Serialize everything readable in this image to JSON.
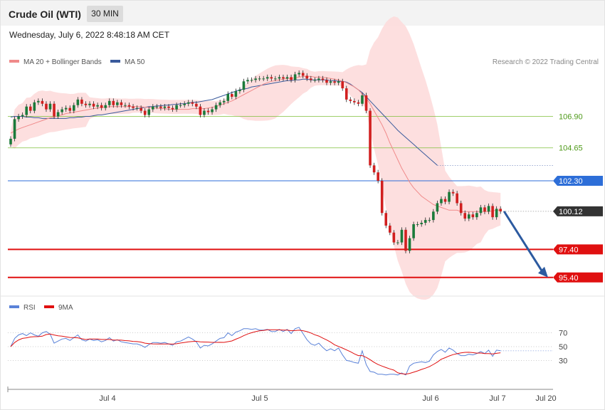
{
  "header": {
    "title": "Crude Oil (WTI)",
    "interval": "30 MIN",
    "timestamp": "Wednesday, July 6, 2022 8:48:18 AM CET"
  },
  "legend": {
    "ma20": "MA 20 + Bollinger Bands",
    "ma50": "MA 50",
    "copyright": "Research © 2022 Trading Central"
  },
  "rsi_legend": {
    "rsi": "RSI",
    "ma9": "9MA"
  },
  "colors": {
    "up_candle": "#1b7a3a",
    "down_candle": "#d11f1f",
    "ma20": "#f08a8a",
    "ma50": "#3a5a9c",
    "bands": "#fdd9d9",
    "resistance": "#7fbf3a",
    "pivot": "#2d6ed8",
    "support": "#e01010",
    "last": "#333333",
    "rsi": "#5a82d8",
    "rsi_ma": "#e01010",
    "arrow": "#2c5aa0"
  },
  "chart_data": [
    {
      "type": "candlestick",
      "title": "Crude Oil (WTI)",
      "timeframe": "30 MIN",
      "x_labels": [
        "Jul 4",
        "Jul 5",
        "Jul 6",
        "Jul 7",
        "Jul 20"
      ],
      "ylim": [
        94.6,
        110.4
      ],
      "levels": [
        {
          "value": 106.9,
          "label": "106.90",
          "kind": "resistance"
        },
        {
          "value": 104.65,
          "label": "104.65",
          "kind": "resistance"
        },
        {
          "value": 102.3,
          "label": "102.30",
          "kind": "pivot"
        },
        {
          "value": 100.12,
          "label": "100.12",
          "kind": "last"
        },
        {
          "value": 97.4,
          "label": "97.40",
          "kind": "support"
        },
        {
          "value": 95.4,
          "label": "95.40",
          "kind": "support"
        }
      ],
      "close": [
        105.3,
        106.7,
        106.9,
        107.0,
        107.6,
        107.3,
        107.9,
        108.0,
        107.8,
        107.4,
        107.8,
        106.9,
        107.2,
        107.4,
        107.5,
        107.3,
        107.7,
        108.1,
        107.8,
        107.7,
        107.8,
        107.6,
        107.7,
        107.5,
        107.7,
        108.0,
        107.7,
        107.9,
        107.7,
        107.7,
        107.6,
        107.5,
        107.5,
        107.3,
        107.0,
        107.4,
        107.6,
        107.6,
        107.5,
        107.6,
        107.5,
        107.4,
        107.7,
        107.7,
        107.8,
        107.9,
        107.8,
        107.6,
        107.0,
        107.3,
        107.2,
        107.4,
        107.7,
        107.9,
        108.0,
        108.5,
        108.3,
        108.7,
        108.8,
        109.4,
        109.5,
        109.5,
        109.6,
        109.6,
        109.6,
        109.7,
        109.6,
        109.6,
        109.7,
        109.6,
        109.7,
        109.5,
        109.9,
        110.0,
        109.8,
        109.6,
        109.5,
        109.5,
        109.6,
        109.5,
        109.3,
        109.4,
        109.3,
        109.4,
        108.9,
        108.1,
        108.0,
        107.9,
        107.8,
        108.4,
        107.3,
        103.4,
        102.9,
        102.3,
        100.0,
        99.1,
        98.6,
        97.9,
        97.9,
        98.8,
        97.3,
        98.2,
        99.2,
        99.2,
        99.3,
        99.5,
        99.5,
        100.1,
        100.7,
        101.0,
        100.8,
        101.5,
        101.4,
        100.7,
        100.0,
        99.6,
        99.9,
        99.7,
        100.0,
        100.4,
        100.1,
        100.5,
        99.7,
        100.3,
        100.12
      ],
      "ma20": [
        105.7,
        105.85,
        106.0,
        106.1,
        106.2,
        106.3,
        106.4,
        106.5,
        106.6,
        106.7,
        106.8,
        106.85,
        106.95,
        107.0,
        107.1,
        107.15,
        107.2,
        107.25,
        107.3,
        107.35,
        107.4,
        107.45,
        107.5,
        107.55,
        107.55,
        107.6,
        107.6,
        107.6,
        107.6,
        107.6,
        107.6,
        107.6,
        107.6,
        107.6,
        107.55,
        107.55,
        107.5,
        107.5,
        107.45,
        107.45,
        107.4,
        107.4,
        107.4,
        107.4,
        107.4,
        107.4,
        107.45,
        107.45,
        107.45,
        107.45,
        107.5,
        107.55,
        107.6,
        107.7,
        107.8,
        107.9,
        108.0,
        108.15,
        108.3,
        108.45,
        108.6,
        108.75,
        108.9,
        109.05,
        109.2,
        109.3,
        109.4,
        109.45,
        109.5,
        109.55,
        109.6,
        109.6,
        109.65,
        109.7,
        109.75,
        109.75,
        109.75,
        109.7,
        109.7,
        109.7,
        109.65,
        109.6,
        109.55,
        109.5,
        109.4,
        109.3,
        109.15,
        109.0,
        108.8,
        108.5,
        108.2,
        107.8,
        107.3,
        106.8,
        106.3,
        105.7,
        105.0,
        104.4,
        103.8,
        103.2,
        102.7,
        102.2,
        101.8,
        101.5,
        101.2,
        101.0,
        100.8,
        100.6,
        100.5,
        100.4,
        100.3,
        100.2,
        100.2,
        100.2,
        100.1,
        100.1,
        100.1,
        100.1,
        100.1,
        100.1,
        100.1,
        100.1,
        100.15,
        100.2,
        100.2
      ],
      "ma50": [
        106.85,
        106.9,
        106.9,
        106.9,
        106.85,
        106.85,
        106.8,
        106.8,
        106.75,
        106.75,
        106.75,
        106.75,
        106.75,
        106.75,
        106.75,
        106.8,
        106.8,
        106.85,
        106.85,
        106.9,
        106.9,
        106.95,
        107.0,
        107.0,
        107.05,
        107.1,
        107.15,
        107.2,
        107.25,
        107.3,
        107.35,
        107.4,
        107.45,
        107.5,
        107.55,
        107.6,
        107.6,
        107.65,
        107.65,
        107.7,
        107.7,
        107.75,
        107.75,
        107.8,
        107.8,
        107.85,
        107.9,
        107.9,
        107.95,
        108.0,
        108.05,
        108.1,
        108.2,
        108.3,
        108.4,
        108.5,
        108.6,
        108.7,
        108.8,
        108.85,
        108.9,
        109.0,
        109.05,
        109.1,
        109.15,
        109.2,
        109.25,
        109.3,
        109.35,
        109.4,
        109.45,
        109.45,
        109.5,
        109.5,
        109.55,
        109.55,
        109.5,
        109.5,
        109.5,
        109.5,
        109.5,
        109.45,
        109.45,
        109.4,
        109.4,
        109.35,
        109.2,
        109.0,
        108.8,
        108.6,
        108.3,
        108.0,
        107.7,
        107.4,
        107.1,
        106.8,
        106.5,
        106.2,
        105.9,
        105.65,
        105.4,
        105.15,
        104.9,
        104.65,
        104.4,
        104.15,
        103.9,
        103.65,
        103.4
      ],
      "rsi": [
        50,
        62,
        67,
        69,
        66,
        70,
        67,
        65,
        70,
        72,
        68,
        55,
        58,
        61,
        62,
        59,
        63,
        67,
        60,
        58,
        61,
        59,
        60,
        57,
        59,
        63,
        58,
        60,
        57,
        56,
        55,
        54,
        54,
        52,
        49,
        53,
        56,
        56,
        55,
        56,
        54,
        52,
        57,
        58,
        61,
        64,
        61,
        57,
        48,
        52,
        51,
        54,
        58,
        62,
        63,
        70,
        66,
        71,
        73,
        76,
        76,
        75,
        76,
        74,
        74,
        75,
        72,
        72,
        75,
        72,
        75,
        69,
        76,
        78,
        69,
        60,
        54,
        52,
        55,
        49,
        44,
        47,
        44,
        48,
        38,
        30,
        29,
        27,
        26,
        44,
        24,
        14,
        13,
        10,
        10,
        9,
        10,
        10,
        9,
        12,
        9,
        22,
        26,
        27,
        28,
        27,
        29,
        38,
        43,
        46,
        42,
        48,
        45,
        40,
        37,
        37,
        39,
        38,
        40,
        43,
        40,
        45,
        36,
        45,
        44
      ]
    }
  ]
}
